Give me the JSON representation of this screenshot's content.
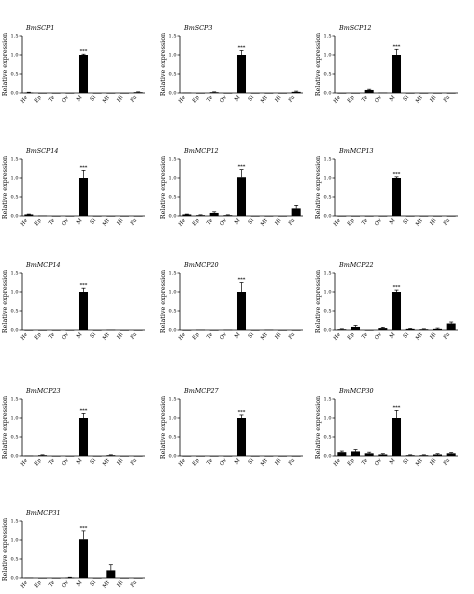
{
  "figure": {
    "ylabel": "Relative expression",
    "categories": [
      "He",
      "Ep",
      "Te",
      "Ov",
      "M",
      "Si",
      "Mt",
      "Hi",
      "Fa"
    ],
    "yticks": [
      "0.0",
      "0.5",
      "1.0",
      "1.5"
    ]
  },
  "chart_data": [
    {
      "type": "bar",
      "title": "BmSCP1",
      "categories": [
        "He",
        "Ep",
        "Te",
        "Ov",
        "M",
        "Si",
        "Mt",
        "Hi",
        "Fa"
      ],
      "values": [
        0.01,
        0.0,
        0.0,
        0.0,
        1.0,
        0.0,
        0.0,
        0.0,
        0.02
      ],
      "errors": [
        0.01,
        0.0,
        0.0,
        0.0,
        0.02,
        0.0,
        0.0,
        0.0,
        0.01
      ],
      "significance": {
        "M": "***"
      },
      "ylabel": "Relative expression",
      "ylim": [
        0,
        1.5
      ]
    },
    {
      "type": "bar",
      "title": "BmSCP3",
      "categories": [
        "He",
        "Ep",
        "Te",
        "Ov",
        "M",
        "Si",
        "Mt",
        "Hi",
        "Fa"
      ],
      "values": [
        0.01,
        0.0,
        0.02,
        0.0,
        1.0,
        0.0,
        0.0,
        0.0,
        0.03
      ],
      "errors": [
        0.0,
        0.0,
        0.01,
        0.0,
        0.12,
        0.0,
        0.0,
        0.0,
        0.02
      ],
      "significance": {
        "M": "***"
      },
      "ylabel": "Relative expression",
      "ylim": [
        0,
        1.5
      ]
    },
    {
      "type": "bar",
      "title": "BmSCP12",
      "categories": [
        "He",
        "Ep",
        "Te",
        "Ov",
        "M",
        "Si",
        "Mt",
        "Hi",
        "Fa"
      ],
      "values": [
        0.0,
        0.0,
        0.08,
        0.01,
        1.0,
        0.0,
        0.0,
        0.0,
        0.0
      ],
      "errors": [
        0.0,
        0.0,
        0.02,
        0.0,
        0.15,
        0.0,
        0.0,
        0.0,
        0.0
      ],
      "significance": {
        "M": "***"
      },
      "ylabel": "Relative expression",
      "ylim": [
        0,
        1.5
      ]
    },
    {
      "type": "bar",
      "title": "BmSCP14",
      "categories": [
        "He",
        "Ep",
        "Te",
        "Ov",
        "M",
        "Si",
        "Mt",
        "Hi",
        "Fa"
      ],
      "values": [
        0.04,
        0.01,
        0.0,
        0.0,
        1.0,
        0.0,
        0.0,
        0.0,
        0.0
      ],
      "errors": [
        0.01,
        0.0,
        0.0,
        0.0,
        0.2,
        0.0,
        0.0,
        0.0,
        0.0
      ],
      "significance": {
        "M": "***"
      },
      "ylabel": "Relative expression",
      "ylim": [
        0,
        1.5
      ]
    },
    {
      "type": "bar",
      "title": "BmMCP12",
      "categories": [
        "He",
        "Ep",
        "Te",
        "Ov",
        "M",
        "Si",
        "Mt",
        "Hi",
        "Fa"
      ],
      "values": [
        0.04,
        0.02,
        0.08,
        0.02,
        1.02,
        0.0,
        0.0,
        0.0,
        0.2
      ],
      "errors": [
        0.01,
        0.01,
        0.03,
        0.01,
        0.2,
        0.0,
        0.0,
        0.0,
        0.08
      ],
      "significance": {
        "M": "***"
      },
      "ylabel": "Relative expression",
      "ylim": [
        0,
        1.5
      ]
    },
    {
      "type": "bar",
      "title": "BmMCP13",
      "categories": [
        "He",
        "Ep",
        "Te",
        "Ov",
        "M",
        "Si",
        "Mt",
        "Hi",
        "Fa"
      ],
      "values": [
        0.0,
        0.0,
        0.0,
        0.0,
        1.0,
        0.0,
        0.0,
        0.0,
        0.0
      ],
      "errors": [
        0.0,
        0.0,
        0.0,
        0.0,
        0.03,
        0.0,
        0.0,
        0.0,
        0.0
      ],
      "significance": {
        "M": "***"
      },
      "ylabel": "Relative expression",
      "ylim": [
        0,
        1.5
      ]
    },
    {
      "type": "bar",
      "title": "BmMCP14",
      "categories": [
        "He",
        "Ep",
        "Te",
        "Ov",
        "M",
        "Si",
        "Mt",
        "Hi",
        "Fa"
      ],
      "values": [
        0.0,
        0.0,
        0.0,
        0.0,
        1.0,
        0.0,
        0.01,
        0.0,
        0.0
      ],
      "errors": [
        0.0,
        0.0,
        0.0,
        0.0,
        0.1,
        0.0,
        0.0,
        0.0,
        0.0
      ],
      "significance": {
        "M": "***"
      },
      "ylabel": "Relative expression",
      "ylim": [
        0,
        1.5
      ]
    },
    {
      "type": "bar",
      "title": "BmMCP20",
      "categories": [
        "He",
        "Ep",
        "Te",
        "Ov",
        "M",
        "Si",
        "Mt",
        "Hi",
        "Fa"
      ],
      "values": [
        0.0,
        0.01,
        0.0,
        0.01,
        1.0,
        0.0,
        0.01,
        0.0,
        0.0
      ],
      "errors": [
        0.0,
        0.0,
        0.0,
        0.0,
        0.25,
        0.0,
        0.0,
        0.0,
        0.0
      ],
      "significance": {
        "M": "***"
      },
      "ylabel": "Relative expression",
      "ylim": [
        0,
        1.5
      ]
    },
    {
      "type": "bar",
      "title": "BmMCP22",
      "categories": [
        "He",
        "Ep",
        "Te",
        "Ov",
        "M",
        "Si",
        "Mt",
        "Hi",
        "Fa"
      ],
      "values": [
        0.02,
        0.08,
        0.0,
        0.05,
        1.0,
        0.03,
        0.02,
        0.03,
        0.17
      ],
      "errors": [
        0.01,
        0.04,
        0.0,
        0.02,
        0.05,
        0.01,
        0.01,
        0.02,
        0.04
      ],
      "significance": {
        "M": "***"
      },
      "ylabel": "Relative expression",
      "ylim": [
        0,
        1.5
      ]
    },
    {
      "type": "bar",
      "title": "BmMCP23",
      "categories": [
        "He",
        "Ep",
        "Te",
        "Ov",
        "M",
        "Si",
        "Mt",
        "Hi",
        "Fa"
      ],
      "values": [
        0.01,
        0.02,
        0.0,
        0.0,
        1.0,
        0.0,
        0.02,
        0.0,
        0.0
      ],
      "errors": [
        0.0,
        0.01,
        0.0,
        0.0,
        0.12,
        0.0,
        0.01,
        0.0,
        0.0
      ],
      "significance": {
        "M": "***"
      },
      "ylabel": "Relative expression",
      "ylim": [
        0,
        1.5
      ]
    },
    {
      "type": "bar",
      "title": "BmMCP27",
      "categories": [
        "He",
        "Ep",
        "Te",
        "Ov",
        "M",
        "Si",
        "Mt",
        "Hi",
        "Fa"
      ],
      "values": [
        0.0,
        0.0,
        0.0,
        0.0,
        1.0,
        0.0,
        0.0,
        0.0,
        0.0
      ],
      "errors": [
        0.0,
        0.0,
        0.0,
        0.0,
        0.08,
        0.0,
        0.0,
        0.0,
        0.0
      ],
      "significance": {
        "M": "***"
      },
      "ylabel": "Relative expression",
      "ylim": [
        0,
        1.5
      ]
    },
    {
      "type": "bar",
      "title": "BmMCP30",
      "categories": [
        "He",
        "Ep",
        "Te",
        "Ov",
        "M",
        "Si",
        "Mt",
        "Hi",
        "Fa"
      ],
      "values": [
        0.1,
        0.12,
        0.07,
        0.04,
        1.0,
        0.02,
        0.02,
        0.04,
        0.07
      ],
      "errors": [
        0.03,
        0.05,
        0.03,
        0.02,
        0.2,
        0.01,
        0.01,
        0.02,
        0.02
      ],
      "significance": {
        "M": "***"
      },
      "ylabel": "Relative expression",
      "ylim": [
        0,
        1.5
      ]
    },
    {
      "type": "bar",
      "title": "BmMCP31",
      "categories": [
        "He",
        "Ep",
        "Te",
        "Ov",
        "M",
        "Si",
        "Mt",
        "Hi",
        "Fa"
      ],
      "values": [
        0.01,
        0.0,
        0.0,
        0.01,
        1.02,
        0.0,
        0.2,
        0.0,
        0.0
      ],
      "errors": [
        0.0,
        0.0,
        0.0,
        0.01,
        0.22,
        0.0,
        0.15,
        0.0,
        0.0
      ],
      "significance": {
        "M": "***"
      },
      "ylabel": "Relative expression",
      "ylim": [
        0,
        1.5
      ]
    }
  ]
}
